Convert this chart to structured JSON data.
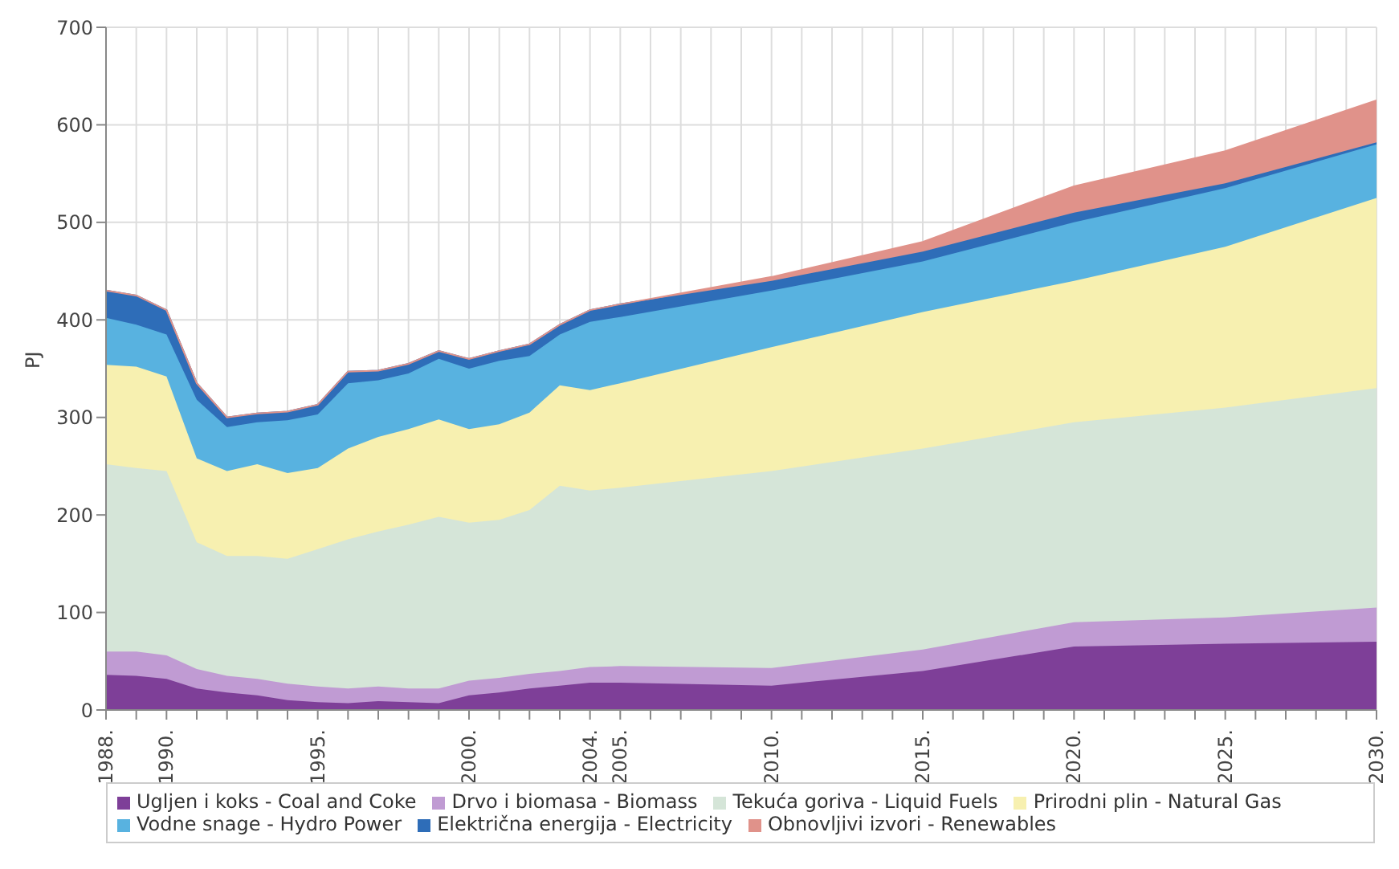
{
  "chart_data": {
    "type": "area",
    "stacked": true,
    "ylabel": "PJ",
    "x": [
      1988,
      1989,
      1990,
      1991,
      1992,
      1993,
      1994,
      1995,
      1996,
      1997,
      1998,
      1999,
      2000,
      2001,
      2002,
      2003,
      2004,
      2005,
      2010,
      2015,
      2020,
      2025,
      2030
    ],
    "series": [
      {
        "name": "Ugljen i koks - Coal and Coke",
        "color": "#7e3f98",
        "values": [
          36,
          35,
          32,
          22,
          18,
          15,
          10,
          8,
          7,
          9,
          8,
          7,
          15,
          18,
          22,
          25,
          28,
          28,
          25,
          40,
          65,
          68,
          70
        ]
      },
      {
        "name": "Drvo i biomasa - Biomass",
        "color": "#c09bd3",
        "values": [
          24,
          25,
          24,
          20,
          17,
          17,
          17,
          16,
          15,
          15,
          14,
          15,
          15,
          15,
          15,
          15,
          16,
          17,
          18,
          22,
          25,
          27,
          35
        ]
      },
      {
        "name": "Tekuća goriva - Liquid Fuels",
        "color": "#d5e5d8",
        "values": [
          192,
          188,
          189,
          130,
          123,
          126,
          128,
          141,
          153,
          159,
          168,
          176,
          162,
          162,
          168,
          190,
          181,
          183,
          202,
          206,
          205,
          215,
          225
        ]
      },
      {
        "name": "Prirodni plin - Natural Gas",
        "color": "#f7f0b0",
        "values": [
          102,
          104,
          97,
          86,
          87,
          94,
          88,
          83,
          93,
          97,
          98,
          100,
          96,
          98,
          100,
          103,
          103,
          107,
          127,
          140,
          145,
          165,
          195
        ]
      },
      {
        "name": "Vodne snage - Hydro Power",
        "color": "#58b2e0",
        "values": [
          48,
          43,
          43,
          60,
          45,
          43,
          54,
          55,
          67,
          58,
          57,
          62,
          62,
          65,
          58,
          52,
          70,
          68,
          58,
          52,
          60,
          60,
          55
        ]
      },
      {
        "name": "Električna energija - Electricity",
        "color": "#2e6db8",
        "values": [
          28,
          30,
          25,
          17,
          10,
          9,
          9,
          10,
          12,
          10,
          10,
          8,
          10,
          10,
          12,
          10,
          12,
          13,
          10,
          10,
          10,
          5,
          2
        ]
      },
      {
        "name": "Obnovljivi izvori - Renewables",
        "color": "#e0928a",
        "values": [
          0,
          0,
          0,
          0,
          0,
          0,
          0,
          0,
          0,
          0,
          0,
          0,
          0,
          0,
          0,
          0,
          0,
          0,
          4,
          10,
          27,
          33,
          43
        ]
      }
    ],
    "xlim": [
      1988,
      2030
    ],
    "xticks": [
      {
        "value": 1988,
        "label": "1988."
      },
      {
        "value": 1989,
        "label": null
      },
      {
        "value": 1990,
        "label": "1990."
      },
      {
        "value": 1991,
        "label": null
      },
      {
        "value": 1992,
        "label": null
      },
      {
        "value": 1993,
        "label": null
      },
      {
        "value": 1994,
        "label": null
      },
      {
        "value": 1995,
        "label": "1995."
      },
      {
        "value": 1996,
        "label": null
      },
      {
        "value": 1997,
        "label": null
      },
      {
        "value": 1998,
        "label": null
      },
      {
        "value": 1999,
        "label": null
      },
      {
        "value": 2000,
        "label": "2000."
      },
      {
        "value": 2001,
        "label": null
      },
      {
        "value": 2002,
        "label": null
      },
      {
        "value": 2003,
        "label": null
      },
      {
        "value": 2004,
        "label": "2004."
      },
      {
        "value": 2005,
        "label": "2005."
      },
      {
        "value": 2006,
        "label": null
      },
      {
        "value": 2007,
        "label": null
      },
      {
        "value": 2008,
        "label": null
      },
      {
        "value": 2009,
        "label": null
      },
      {
        "value": 2010,
        "label": "2010."
      },
      {
        "value": 2011,
        "label": null
      },
      {
        "value": 2012,
        "label": null
      },
      {
        "value": 2013,
        "label": null
      },
      {
        "value": 2014,
        "label": null
      },
      {
        "value": 2015,
        "label": "2015."
      },
      {
        "value": 2016,
        "label": null
      },
      {
        "value": 2017,
        "label": null
      },
      {
        "value": 2018,
        "label": null
      },
      {
        "value": 2019,
        "label": null
      },
      {
        "value": 2020,
        "label": "2020."
      },
      {
        "value": 2021,
        "label": null
      },
      {
        "value": 2022,
        "label": null
      },
      {
        "value": 2023,
        "label": null
      },
      {
        "value": 2024,
        "label": null
      },
      {
        "value": 2025,
        "label": "2025."
      },
      {
        "value": 2026,
        "label": null
      },
      {
        "value": 2027,
        "label": null
      },
      {
        "value": 2028,
        "label": null
      },
      {
        "value": 2029,
        "label": null
      },
      {
        "value": 2030,
        "label": "2030."
      }
    ],
    "ylim": [
      0,
      700
    ],
    "yticks": [
      0,
      100,
      200,
      300,
      400,
      500,
      600,
      700
    ],
    "grid": true,
    "legend": "bottom"
  }
}
